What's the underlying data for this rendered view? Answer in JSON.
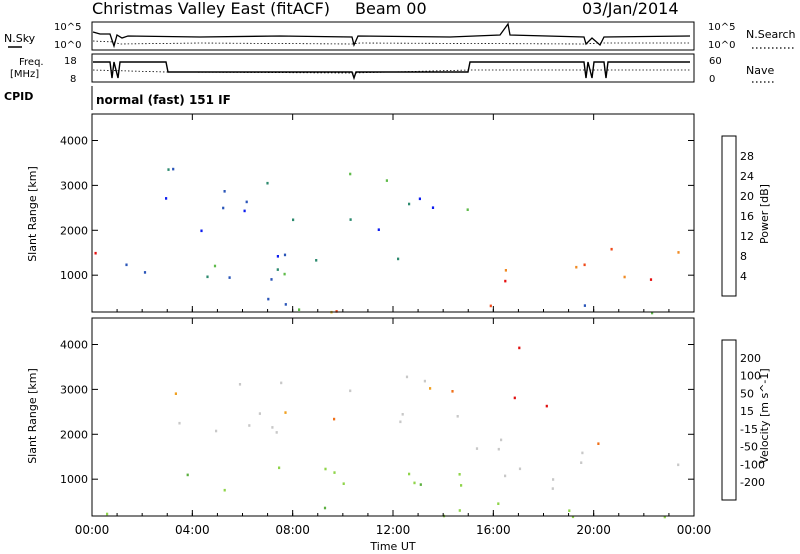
{
  "header": {
    "title": "Christmas Valley East (fitACF)",
    "beam": "Beam 00",
    "date": "03/Jan/2014"
  },
  "strips": {
    "nsky_label": "N.Sky",
    "nsky_ticks": [
      "10^5",
      "10^0"
    ],
    "nsearch_label": "N.Search",
    "nsearch_ticks": [
      "10^5",
      "10^0"
    ],
    "freq_label": "Freq.",
    "freq_unit": "[MHz]",
    "freq_ticks": [
      "18",
      "8"
    ],
    "nave_label": "Nave",
    "nave_ticks": [
      "60",
      "0"
    ],
    "cpid_label": "CPID",
    "cpid_text": "normal (fast) 151 IF"
  },
  "chart_data": [
    {
      "type": "heatmap",
      "name": "power",
      "ylabel": "Slant Range [km]",
      "xlabel": "Time UT",
      "x_ticks": [
        "00:00",
        "04:00",
        "08:00",
        "12:00",
        "16:00",
        "20:00",
        "00:00"
      ],
      "x_range_hours": [
        0,
        24
      ],
      "y_range_km": [
        180,
        4590
      ],
      "y_ticks": [
        1000,
        2000,
        3000,
        4000
      ],
      "colorbar": {
        "label": "Power [dB]",
        "ticks": [
          "4",
          "8",
          "12",
          "16",
          "20",
          "24",
          "28"
        ],
        "colors": [
          "#0c1cf0",
          "#2a55b8",
          "#2c8a6e",
          "#5fbb4a",
          "#e8c23a",
          "#f08a23",
          "#f04a1a",
          "#e61010"
        ]
      },
      "features": [
        {
          "t_start": 0.1,
          "t_end": 1.0,
          "r_start": 1100,
          "r_end": 1900,
          "level": "high"
        },
        {
          "t_start": 15.3,
          "t_end": 19.7,
          "r_start": 800,
          "r_end": 1700,
          "level": "high"
        },
        {
          "t_start": 20.3,
          "t_end": 23.9,
          "r_start": 800,
          "r_end": 1800,
          "level": "high"
        },
        {
          "t_start": 2.5,
          "t_end": 10.3,
          "r_start": 2000,
          "r_end": 3400,
          "level": "low"
        },
        {
          "t_start": 11.0,
          "t_end": 15.0,
          "r_start": 2000,
          "r_end": 3400,
          "level": "low"
        },
        {
          "t_start": 1.2,
          "t_end": 15.0,
          "r_start": 700,
          "r_end": 1500,
          "level": "mid"
        },
        {
          "t_start": 0.3,
          "t_end": 23.8,
          "r_start": 180,
          "r_end": 500,
          "level": "ground"
        }
      ]
    },
    {
      "type": "heatmap",
      "name": "velocity",
      "ylabel": "Slant Range [km]",
      "xlabel": "Time UT",
      "x_ticks": [
        "00:00",
        "04:00",
        "08:00",
        "12:00",
        "16:00",
        "20:00",
        "00:00"
      ],
      "x_range_hours": [
        0,
        24
      ],
      "y_range_km": [
        180,
        4590
      ],
      "y_ticks": [
        1000,
        2000,
        3000,
        4000
      ],
      "colorbar": {
        "label": "Velocity [m s^-1]",
        "ticks": [
          "200",
          "100",
          "50",
          "15",
          "-15",
          "-50",
          "-100",
          "-200"
        ],
        "colors": [
          "#1d2fa8",
          "#2d6e58",
          "#5cb040",
          "#8fd44a",
          "#c8c8c8",
          "#f0a020",
          "#f07018",
          "#e83018",
          "#e01010"
        ]
      },
      "features": [
        {
          "t_start": 15.3,
          "t_end": 23.9,
          "r_start": 800,
          "r_end": 2000,
          "level": "grey"
        },
        {
          "t_start": 2.5,
          "t_end": 15.0,
          "r_start": 2000,
          "r_end": 3400,
          "level": "grey"
        },
        {
          "t_start": 1.2,
          "t_end": 15.0,
          "r_start": 700,
          "r_end": 1400,
          "level": "green"
        },
        {
          "t_start": 0.3,
          "t_end": 23.8,
          "r_start": 180,
          "r_end": 500,
          "level": "green"
        },
        {
          "t_start": 16.2,
          "t_end": 18.3,
          "r_start": 2600,
          "r_end": 4000,
          "level": "red"
        }
      ]
    }
  ],
  "colors": {
    "axis": "#000000",
    "background": "#ffffff"
  }
}
